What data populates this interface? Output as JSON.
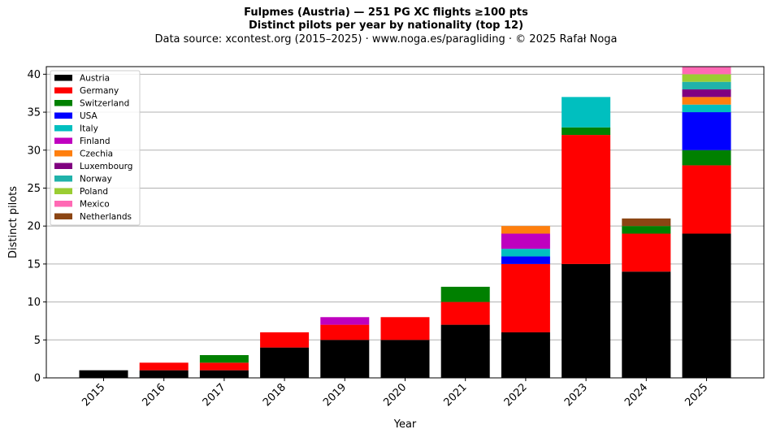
{
  "header": {
    "title_line1": "Fulpmes (Austria)  —  251 PG XC flights ≥100 pts",
    "title_line2": "Distinct pilots per year by nationality (top 12)",
    "subtitle": "Data source: xcontest.org (2015–2025)  ·  www.noga.es/paragliding  ·  © 2025 Rafał Noga"
  },
  "chart_data": {
    "type": "bar",
    "stacked": true,
    "xlabel": "Year",
    "ylabel": "Distinct pilots",
    "ylim": [
      0,
      41
    ],
    "yticks": [
      0,
      5,
      10,
      15,
      20,
      25,
      30,
      35,
      40
    ],
    "grid": "horizontal",
    "legend_position": "top-left",
    "categories": [
      "2015",
      "2016",
      "2017",
      "2018",
      "2019",
      "2020",
      "2021",
      "2022",
      "2023",
      "2024",
      "2025"
    ],
    "series": [
      {
        "name": "Austria",
        "color": "#000000",
        "values": [
          1,
          1,
          1,
          4,
          5,
          5,
          7,
          6,
          15,
          14,
          19
        ]
      },
      {
        "name": "Germany",
        "color": "#ff0000",
        "values": [
          0,
          1,
          1,
          2,
          2,
          3,
          3,
          9,
          17,
          5,
          9
        ]
      },
      {
        "name": "Switzerland",
        "color": "#008000",
        "values": [
          0,
          0,
          1,
          0,
          0,
          0,
          2,
          0,
          1,
          1,
          2
        ]
      },
      {
        "name": "USA",
        "color": "#0000ff",
        "values": [
          0,
          0,
          0,
          0,
          0,
          0,
          0,
          1,
          0,
          0,
          5
        ]
      },
      {
        "name": "Italy",
        "color": "#00bfbf",
        "values": [
          0,
          0,
          0,
          0,
          0,
          0,
          0,
          1,
          4,
          0,
          1
        ]
      },
      {
        "name": "Finland",
        "color": "#bf00bf",
        "values": [
          0,
          0,
          0,
          0,
          1,
          0,
          0,
          2,
          0,
          0,
          0
        ]
      },
      {
        "name": "Czechia",
        "color": "#ff7f0e",
        "values": [
          0,
          0,
          0,
          0,
          0,
          0,
          0,
          1,
          0,
          0,
          1
        ]
      },
      {
        "name": "Luxembourg",
        "color": "#800080",
        "values": [
          0,
          0,
          0,
          0,
          0,
          0,
          0,
          0,
          0,
          0,
          1
        ]
      },
      {
        "name": "Norway",
        "color": "#20b2aa",
        "values": [
          0,
          0,
          0,
          0,
          0,
          0,
          0,
          0,
          0,
          0,
          1
        ]
      },
      {
        "name": "Poland",
        "color": "#9acd32",
        "values": [
          0,
          0,
          0,
          0,
          0,
          0,
          0,
          0,
          0,
          0,
          1
        ]
      },
      {
        "name": "Mexico",
        "color": "#ff69b4",
        "values": [
          0,
          0,
          0,
          0,
          0,
          0,
          0,
          0,
          0,
          0,
          1
        ]
      },
      {
        "name": "Netherlands",
        "color": "#8b4513",
        "values": [
          0,
          0,
          0,
          0,
          0,
          0,
          0,
          0,
          0,
          1,
          0
        ]
      }
    ]
  }
}
